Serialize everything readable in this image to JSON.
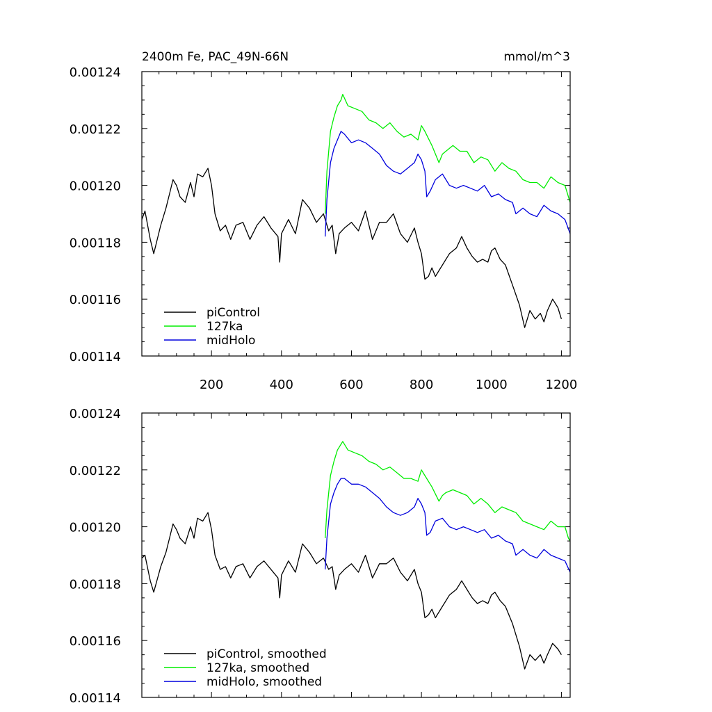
{
  "chart_data": [
    {
      "type": "line",
      "title_left": "2400m Fe, PAC_49N-66N",
      "title_right": "mmol/m^3",
      "xlim": [
        1,
        1225
      ],
      "ylim": [
        0.00114,
        0.00124
      ],
      "x_ticks": [
        200,
        400,
        600,
        800,
        1000,
        1200
      ],
      "x_tick_labels": [
        "200",
        "400",
        "600",
        "800",
        "1000",
        "1200"
      ],
      "y_ticks": [
        0.00114,
        0.00116,
        0.00118,
        0.0012,
        0.00122,
        0.00124
      ],
      "y_tick_labels": [
        "0.00114",
        "0.00116",
        "0.00118",
        "0.00120",
        "0.00122",
        "0.00124"
      ],
      "legend_position": "bottom-left",
      "series": [
        {
          "name": "piControl",
          "color": "#000000",
          "x": [
            1,
            10,
            25,
            35,
            55,
            70,
            80,
            90,
            100,
            110,
            125,
            140,
            150,
            160,
            175,
            190,
            200,
            210,
            225,
            240,
            255,
            270,
            290,
            310,
            330,
            350,
            370,
            390,
            395,
            400,
            420,
            440,
            460,
            480,
            500,
            520,
            535,
            545,
            555,
            565,
            580,
            600,
            620,
            640,
            660,
            680,
            700,
            720,
            740,
            760,
            780,
            790,
            800,
            810,
            820,
            830,
            840,
            860,
            880,
            900,
            915,
            930,
            945,
            960,
            975,
            990,
            1000,
            1010,
            1025,
            1040,
            1060,
            1080,
            1095,
            1110,
            1125,
            1140,
            1150,
            1160,
            1175,
            1190,
            1200
          ],
          "y": [
            0.001188,
            0.001191,
            0.001181,
            0.001176,
            0.001186,
            0.001192,
            0.001197,
            0.001202,
            0.0012,
            0.001196,
            0.001194,
            0.001201,
            0.001196,
            0.001204,
            0.001203,
            0.001206,
            0.0012,
            0.00119,
            0.001184,
            0.001186,
            0.001181,
            0.001186,
            0.001187,
            0.001181,
            0.001186,
            0.001189,
            0.001185,
            0.001182,
            0.001173,
            0.001183,
            0.001188,
            0.001183,
            0.001195,
            0.001192,
            0.001187,
            0.00119,
            0.001184,
            0.001186,
            0.001176,
            0.001183,
            0.001185,
            0.001187,
            0.001184,
            0.001191,
            0.001181,
            0.001187,
            0.001187,
            0.00119,
            0.001183,
            0.00118,
            0.001185,
            0.00118,
            0.001176,
            0.001167,
            0.001168,
            0.001171,
            0.001168,
            0.001172,
            0.001176,
            0.001178,
            0.001182,
            0.001178,
            0.001175,
            0.001173,
            0.001174,
            0.001173,
            0.001177,
            0.001178,
            0.001174,
            0.001172,
            0.001165,
            0.001158,
            0.00115,
            0.001156,
            0.001153,
            0.001155,
            0.001152,
            0.001156,
            0.00116,
            0.001157,
            0.001153
          ]
        },
        {
          "name": "127ka",
          "color": "#00ee00",
          "x": [
            525,
            530,
            540,
            550,
            560,
            570,
            575,
            590,
            610,
            630,
            650,
            670,
            690,
            710,
            730,
            750,
            770,
            790,
            800,
            810,
            830,
            850,
            860,
            870,
            890,
            910,
            930,
            950,
            970,
            990,
            1010,
            1030,
            1050,
            1070,
            1090,
            1110,
            1130,
            1150,
            1170,
            1190,
            1210,
            1220,
            1225
          ],
          "y": [
            0.00119,
            0.001205,
            0.001219,
            0.001224,
            0.001228,
            0.00123,
            0.001232,
            0.001228,
            0.001227,
            0.001226,
            0.001223,
            0.001222,
            0.00122,
            0.001222,
            0.001219,
            0.001217,
            0.001218,
            0.001216,
            0.001221,
            0.001219,
            0.001214,
            0.001208,
            0.001211,
            0.001212,
            0.001214,
            0.001212,
            0.001212,
            0.001208,
            0.00121,
            0.001209,
            0.001205,
            0.001208,
            0.001206,
            0.001205,
            0.001202,
            0.001201,
            0.001201,
            0.001199,
            0.001203,
            0.001201,
            0.0012,
            0.001196,
            0.001194
          ]
        },
        {
          "name": "midHolo",
          "color": "#0000dd",
          "x": [
            525,
            530,
            540,
            550,
            560,
            570,
            580,
            600,
            620,
            640,
            660,
            680,
            700,
            720,
            740,
            760,
            780,
            790,
            800,
            810,
            815,
            825,
            840,
            860,
            880,
            900,
            920,
            940,
            960,
            980,
            1000,
            1020,
            1040,
            1060,
            1070,
            1090,
            1110,
            1130,
            1150,
            1170,
            1190,
            1210,
            1225
          ],
          "y": [
            0.001182,
            0.001195,
            0.001208,
            0.001213,
            0.001216,
            0.001219,
            0.001218,
            0.001215,
            0.001216,
            0.001215,
            0.001213,
            0.001211,
            0.001207,
            0.001205,
            0.001204,
            0.001206,
            0.001208,
            0.001211,
            0.001209,
            0.001205,
            0.001196,
            0.001198,
            0.001202,
            0.001204,
            0.0012,
            0.001199,
            0.0012,
            0.001199,
            0.001198,
            0.0012,
            0.001196,
            0.001197,
            0.001195,
            0.001194,
            0.00119,
            0.001192,
            0.00119,
            0.001189,
            0.001193,
            0.001191,
            0.00119,
            0.001188,
            0.001183
          ]
        }
      ]
    },
    {
      "type": "line",
      "xlim": [
        1,
        1225
      ],
      "ylim": [
        0.00114,
        0.00124
      ],
      "x_ticks": [
        200,
        400,
        600,
        800,
        1000,
        1200
      ],
      "y_ticks": [
        0.00114,
        0.00116,
        0.00118,
        0.0012,
        0.00122,
        0.00124
      ],
      "y_tick_labels": [
        "0.00114",
        "0.00116",
        "0.00118",
        "0.00120",
        "0.00122",
        "0.00124"
      ],
      "legend_position": "bottom-left",
      "series": [
        {
          "name": "piControl, smoothed",
          "color": "#000000",
          "x": [
            1,
            10,
            25,
            35,
            55,
            70,
            80,
            90,
            100,
            110,
            125,
            140,
            150,
            160,
            175,
            190,
            200,
            210,
            225,
            240,
            255,
            270,
            290,
            310,
            330,
            350,
            370,
            390,
            395,
            400,
            420,
            440,
            460,
            480,
            500,
            520,
            535,
            545,
            555,
            565,
            580,
            600,
            620,
            640,
            660,
            680,
            700,
            720,
            740,
            760,
            780,
            790,
            800,
            810,
            820,
            830,
            840,
            860,
            880,
            900,
            915,
            930,
            945,
            960,
            975,
            990,
            1000,
            1010,
            1025,
            1040,
            1060,
            1080,
            1095,
            1110,
            1125,
            1140,
            1150,
            1160,
            1175,
            1190,
            1200
          ],
          "y": [
            0.001189,
            0.00119,
            0.001181,
            0.001177,
            0.001186,
            0.001191,
            0.001196,
            0.001201,
            0.001199,
            0.001196,
            0.001194,
            0.0012,
            0.001196,
            0.001203,
            0.001202,
            0.001205,
            0.001199,
            0.00119,
            0.001185,
            0.001186,
            0.001182,
            0.001186,
            0.001187,
            0.001182,
            0.001186,
            0.001188,
            0.001185,
            0.001182,
            0.001175,
            0.001183,
            0.001188,
            0.001184,
            0.001194,
            0.001191,
            0.001187,
            0.001189,
            0.001185,
            0.001186,
            0.001178,
            0.001183,
            0.001185,
            0.001187,
            0.001184,
            0.00119,
            0.001182,
            0.001187,
            0.001187,
            0.001189,
            0.001184,
            0.001181,
            0.001185,
            0.00118,
            0.001177,
            0.001168,
            0.001169,
            0.001171,
            0.001168,
            0.001172,
            0.001176,
            0.001178,
            0.001181,
            0.001178,
            0.001175,
            0.001173,
            0.001174,
            0.001173,
            0.001176,
            0.001177,
            0.001174,
            0.001172,
            0.001166,
            0.001158,
            0.00115,
            0.001155,
            0.001153,
            0.001155,
            0.001152,
            0.001155,
            0.001159,
            0.001157,
            0.001155
          ]
        },
        {
          "name": "127ka, smoothed",
          "color": "#00ee00",
          "x": [
            525,
            530,
            540,
            550,
            560,
            570,
            575,
            590,
            610,
            630,
            650,
            670,
            690,
            710,
            730,
            750,
            770,
            790,
            800,
            810,
            830,
            850,
            860,
            870,
            890,
            910,
            930,
            950,
            970,
            990,
            1010,
            1030,
            1050,
            1070,
            1090,
            1110,
            1130,
            1150,
            1170,
            1190,
            1210,
            1220,
            1225
          ],
          "y": [
            0.001196,
            0.001206,
            0.001218,
            0.001223,
            0.001227,
            0.001229,
            0.00123,
            0.001227,
            0.001226,
            0.001225,
            0.001223,
            0.001222,
            0.00122,
            0.001221,
            0.001219,
            0.001217,
            0.001217,
            0.001216,
            0.00122,
            0.001218,
            0.001214,
            0.001209,
            0.001211,
            0.001212,
            0.001213,
            0.001212,
            0.001211,
            0.001208,
            0.00121,
            0.001208,
            0.001205,
            0.001207,
            0.001206,
            0.001205,
            0.001202,
            0.001201,
            0.0012,
            0.001199,
            0.001202,
            0.0012,
            0.0012,
            0.001196,
            0.001195
          ]
        },
        {
          "name": "midHolo, smoothed",
          "color": "#0000dd",
          "x": [
            525,
            530,
            540,
            550,
            560,
            570,
            580,
            600,
            620,
            640,
            660,
            680,
            700,
            720,
            740,
            760,
            780,
            790,
            800,
            810,
            815,
            825,
            840,
            860,
            880,
            900,
            920,
            940,
            960,
            980,
            1000,
            1020,
            1040,
            1060,
            1070,
            1090,
            1110,
            1130,
            1150,
            1170,
            1190,
            1210,
            1225
          ],
          "y": [
            0.001185,
            0.001196,
            0.001208,
            0.001212,
            0.001215,
            0.001217,
            0.001217,
            0.001215,
            0.001215,
            0.001214,
            0.001212,
            0.00121,
            0.001207,
            0.001205,
            0.001204,
            0.001205,
            0.001207,
            0.00121,
            0.001208,
            0.001205,
            0.001197,
            0.001198,
            0.001202,
            0.001203,
            0.0012,
            0.001199,
            0.0012,
            0.001199,
            0.001198,
            0.001199,
            0.001196,
            0.001197,
            0.001195,
            0.001194,
            0.00119,
            0.001192,
            0.00119,
            0.001189,
            0.001192,
            0.00119,
            0.001189,
            0.001188,
            0.001184
          ]
        }
      ]
    }
  ]
}
